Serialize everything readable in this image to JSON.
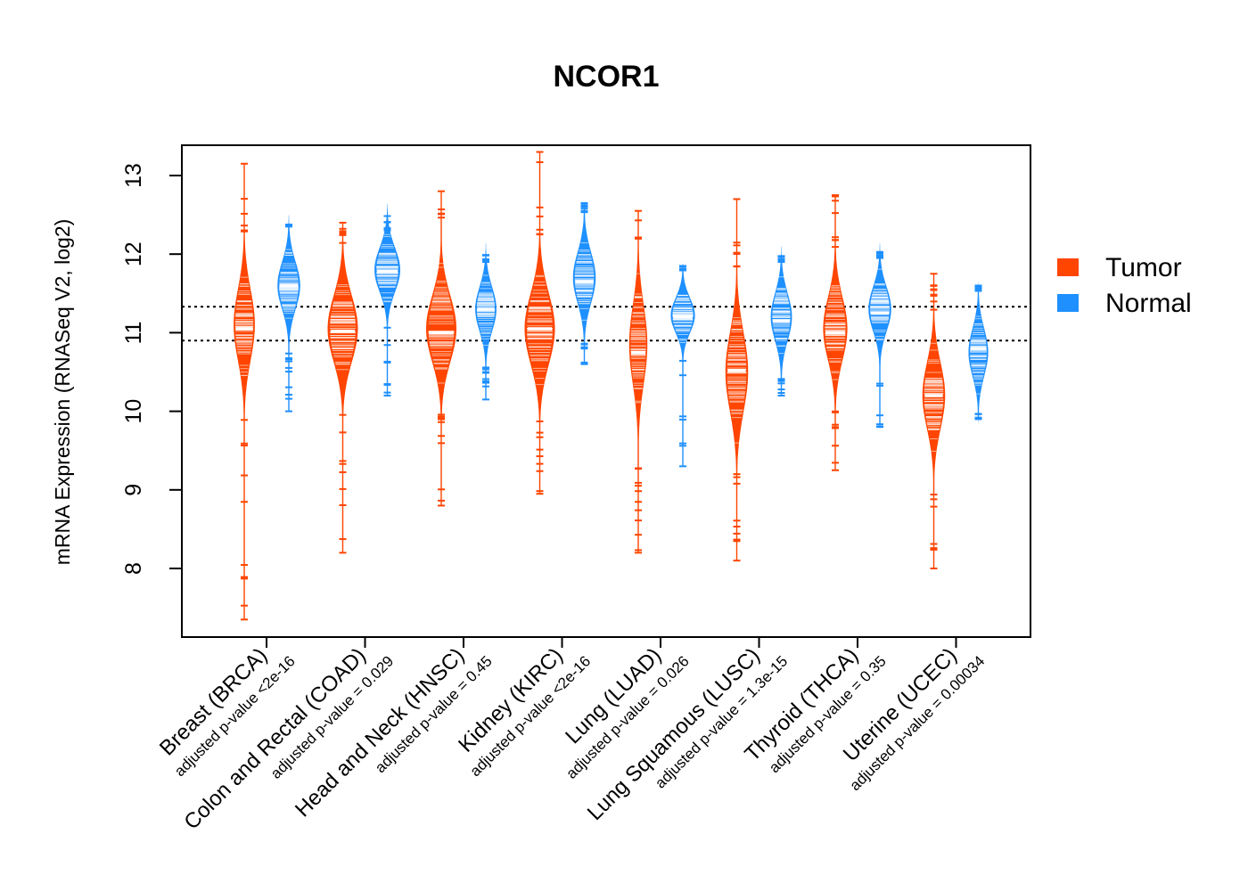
{
  "chart_data": {
    "type": "beanplot",
    "title": "NCOR1",
    "xlabel": "",
    "ylabel": "mRNA Expression (RNASeq V2, log2)",
    "ylim": [
      7.15,
      13.4
    ],
    "yticks": [
      8,
      9,
      10,
      11,
      12,
      13
    ],
    "reference_lines": [
      10.9,
      11.33
    ],
    "legend": {
      "position": "right",
      "entries": [
        {
          "name": "Tumor",
          "color": "#FF4500"
        },
        {
          "name": "Normal",
          "color": "#1E90FF"
        }
      ]
    },
    "colors": {
      "tumor": "#FF4500",
      "normal": "#1E90FF",
      "median": "#FFFFFF"
    },
    "groups": [
      {
        "label": "Breast (BRCA)",
        "pvalue": "adjusted p-value <2e-16",
        "tumor": {
          "min": 7.35,
          "max": 13.15,
          "median": 11.05,
          "center": 11.1,
          "spread": 0.45,
          "width": 0.7
        },
        "normal": {
          "min": 10.0,
          "max": 12.35,
          "median": 11.6,
          "center": 11.6,
          "spread": 0.3,
          "width": 0.75
        }
      },
      {
        "label": "Colon and Rectal (COAD)",
        "pvalue": "adjusted p-value = 0.029",
        "tumor": {
          "min": 8.2,
          "max": 12.4,
          "median": 11.02,
          "center": 11.05,
          "spread": 0.42,
          "width": 1.0
        },
        "normal": {
          "min": 10.2,
          "max": 12.3,
          "median": 11.78,
          "center": 11.8,
          "spread": 0.28,
          "width": 0.85
        }
      },
      {
        "label": "Head and Neck (HNSC)",
        "pvalue": "adjusted p-value = 0.45",
        "tumor": {
          "min": 8.8,
          "max": 12.8,
          "median": 11.0,
          "center": 11.05,
          "spread": 0.42,
          "width": 1.0
        },
        "normal": {
          "min": 10.15,
          "max": 11.9,
          "median": 11.3,
          "center": 11.3,
          "spread": 0.28,
          "width": 0.7
        }
      },
      {
        "label": "Kidney (KIRC)",
        "pvalue": "adjusted p-value <2e-16",
        "tumor": {
          "min": 8.95,
          "max": 13.3,
          "median": 11.05,
          "center": 11.05,
          "spread": 0.45,
          "width": 1.0
        },
        "normal": {
          "min": 10.6,
          "max": 12.65,
          "median": 11.65,
          "center": 11.7,
          "spread": 0.32,
          "width": 0.75
        }
      },
      {
        "label": "Lung (LUAD)",
        "pvalue": "adjusted p-value = 0.026",
        "tumor": {
          "min": 8.2,
          "max": 12.55,
          "median": 10.75,
          "center": 10.85,
          "spread": 0.5,
          "width": 0.6
        },
        "normal": {
          "min": 9.3,
          "max": 11.85,
          "median": 11.2,
          "center": 11.22,
          "spread": 0.22,
          "width": 0.8
        }
      },
      {
        "label": "Lung Squamous (LUSC)",
        "pvalue": "adjusted p-value = 1.3e-15",
        "tumor": {
          "min": 8.1,
          "max": 12.7,
          "median": 10.52,
          "center": 10.5,
          "spread": 0.5,
          "width": 0.75
        },
        "normal": {
          "min": 10.2,
          "max": 11.9,
          "median": 11.15,
          "center": 11.2,
          "spread": 0.3,
          "width": 0.7
        }
      },
      {
        "label": "Thyroid (THCA)",
        "pvalue": "adjusted p-value = 0.35",
        "tumor": {
          "min": 9.25,
          "max": 12.75,
          "median": 11.0,
          "center": 11.05,
          "spread": 0.4,
          "width": 0.8
        },
        "normal": {
          "min": 9.8,
          "max": 11.95,
          "median": 11.25,
          "center": 11.3,
          "spread": 0.28,
          "width": 0.75
        }
      },
      {
        "label": "Uterine (UCEC)",
        "pvalue": "adjusted p-value = 0.00034",
        "tumor": {
          "min": 8.0,
          "max": 11.75,
          "median": 10.2,
          "center": 10.2,
          "spread": 0.42,
          "width": 0.75
        },
        "normal": {
          "min": 9.9,
          "max": 11.6,
          "median": 10.8,
          "center": 10.75,
          "spread": 0.3,
          "width": 0.65
        }
      }
    ]
  }
}
